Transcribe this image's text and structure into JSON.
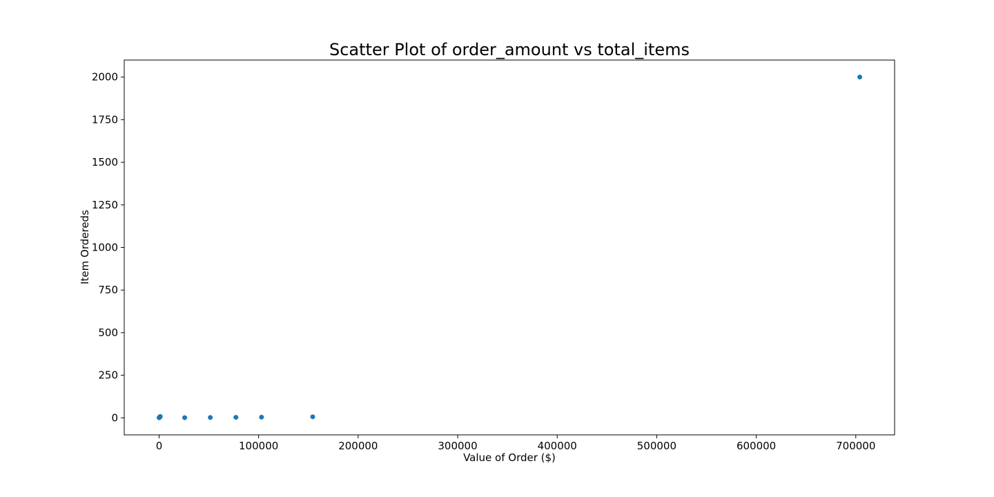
{
  "chart_data": {
    "type": "scatter",
    "title": "Scatter Plot of order_amount vs total_items",
    "xlabel": "Value of Order ($)",
    "ylabel": "Item Ordereds",
    "xlim": [
      -35000,
      739000
    ],
    "ylim": [
      -100,
      2100
    ],
    "xticks": [
      0,
      100000,
      200000,
      300000,
      400000,
      500000,
      600000,
      700000
    ],
    "yticks": [
      0,
      250,
      500,
      750,
      1000,
      1250,
      1500,
      1750,
      2000
    ],
    "grid": false,
    "legend": "none",
    "marker_color": "#1f77b4",
    "series": [
      {
        "points": [
          {
            "x": 90,
            "y": 1
          },
          {
            "x": 150,
            "y": 1
          },
          {
            "x": 300,
            "y": 2
          },
          {
            "x": 450,
            "y": 3
          },
          {
            "x": 600,
            "y": 4
          },
          {
            "x": 800,
            "y": 5
          },
          {
            "x": 1000,
            "y": 6
          },
          {
            "x": 1200,
            "y": 8
          },
          {
            "x": 25725,
            "y": 1
          },
          {
            "x": 51450,
            "y": 2
          },
          {
            "x": 77175,
            "y": 3
          },
          {
            "x": 102900,
            "y": 4
          },
          {
            "x": 154350,
            "y": 6
          },
          {
            "x": 704000,
            "y": 2000
          }
        ]
      }
    ]
  }
}
